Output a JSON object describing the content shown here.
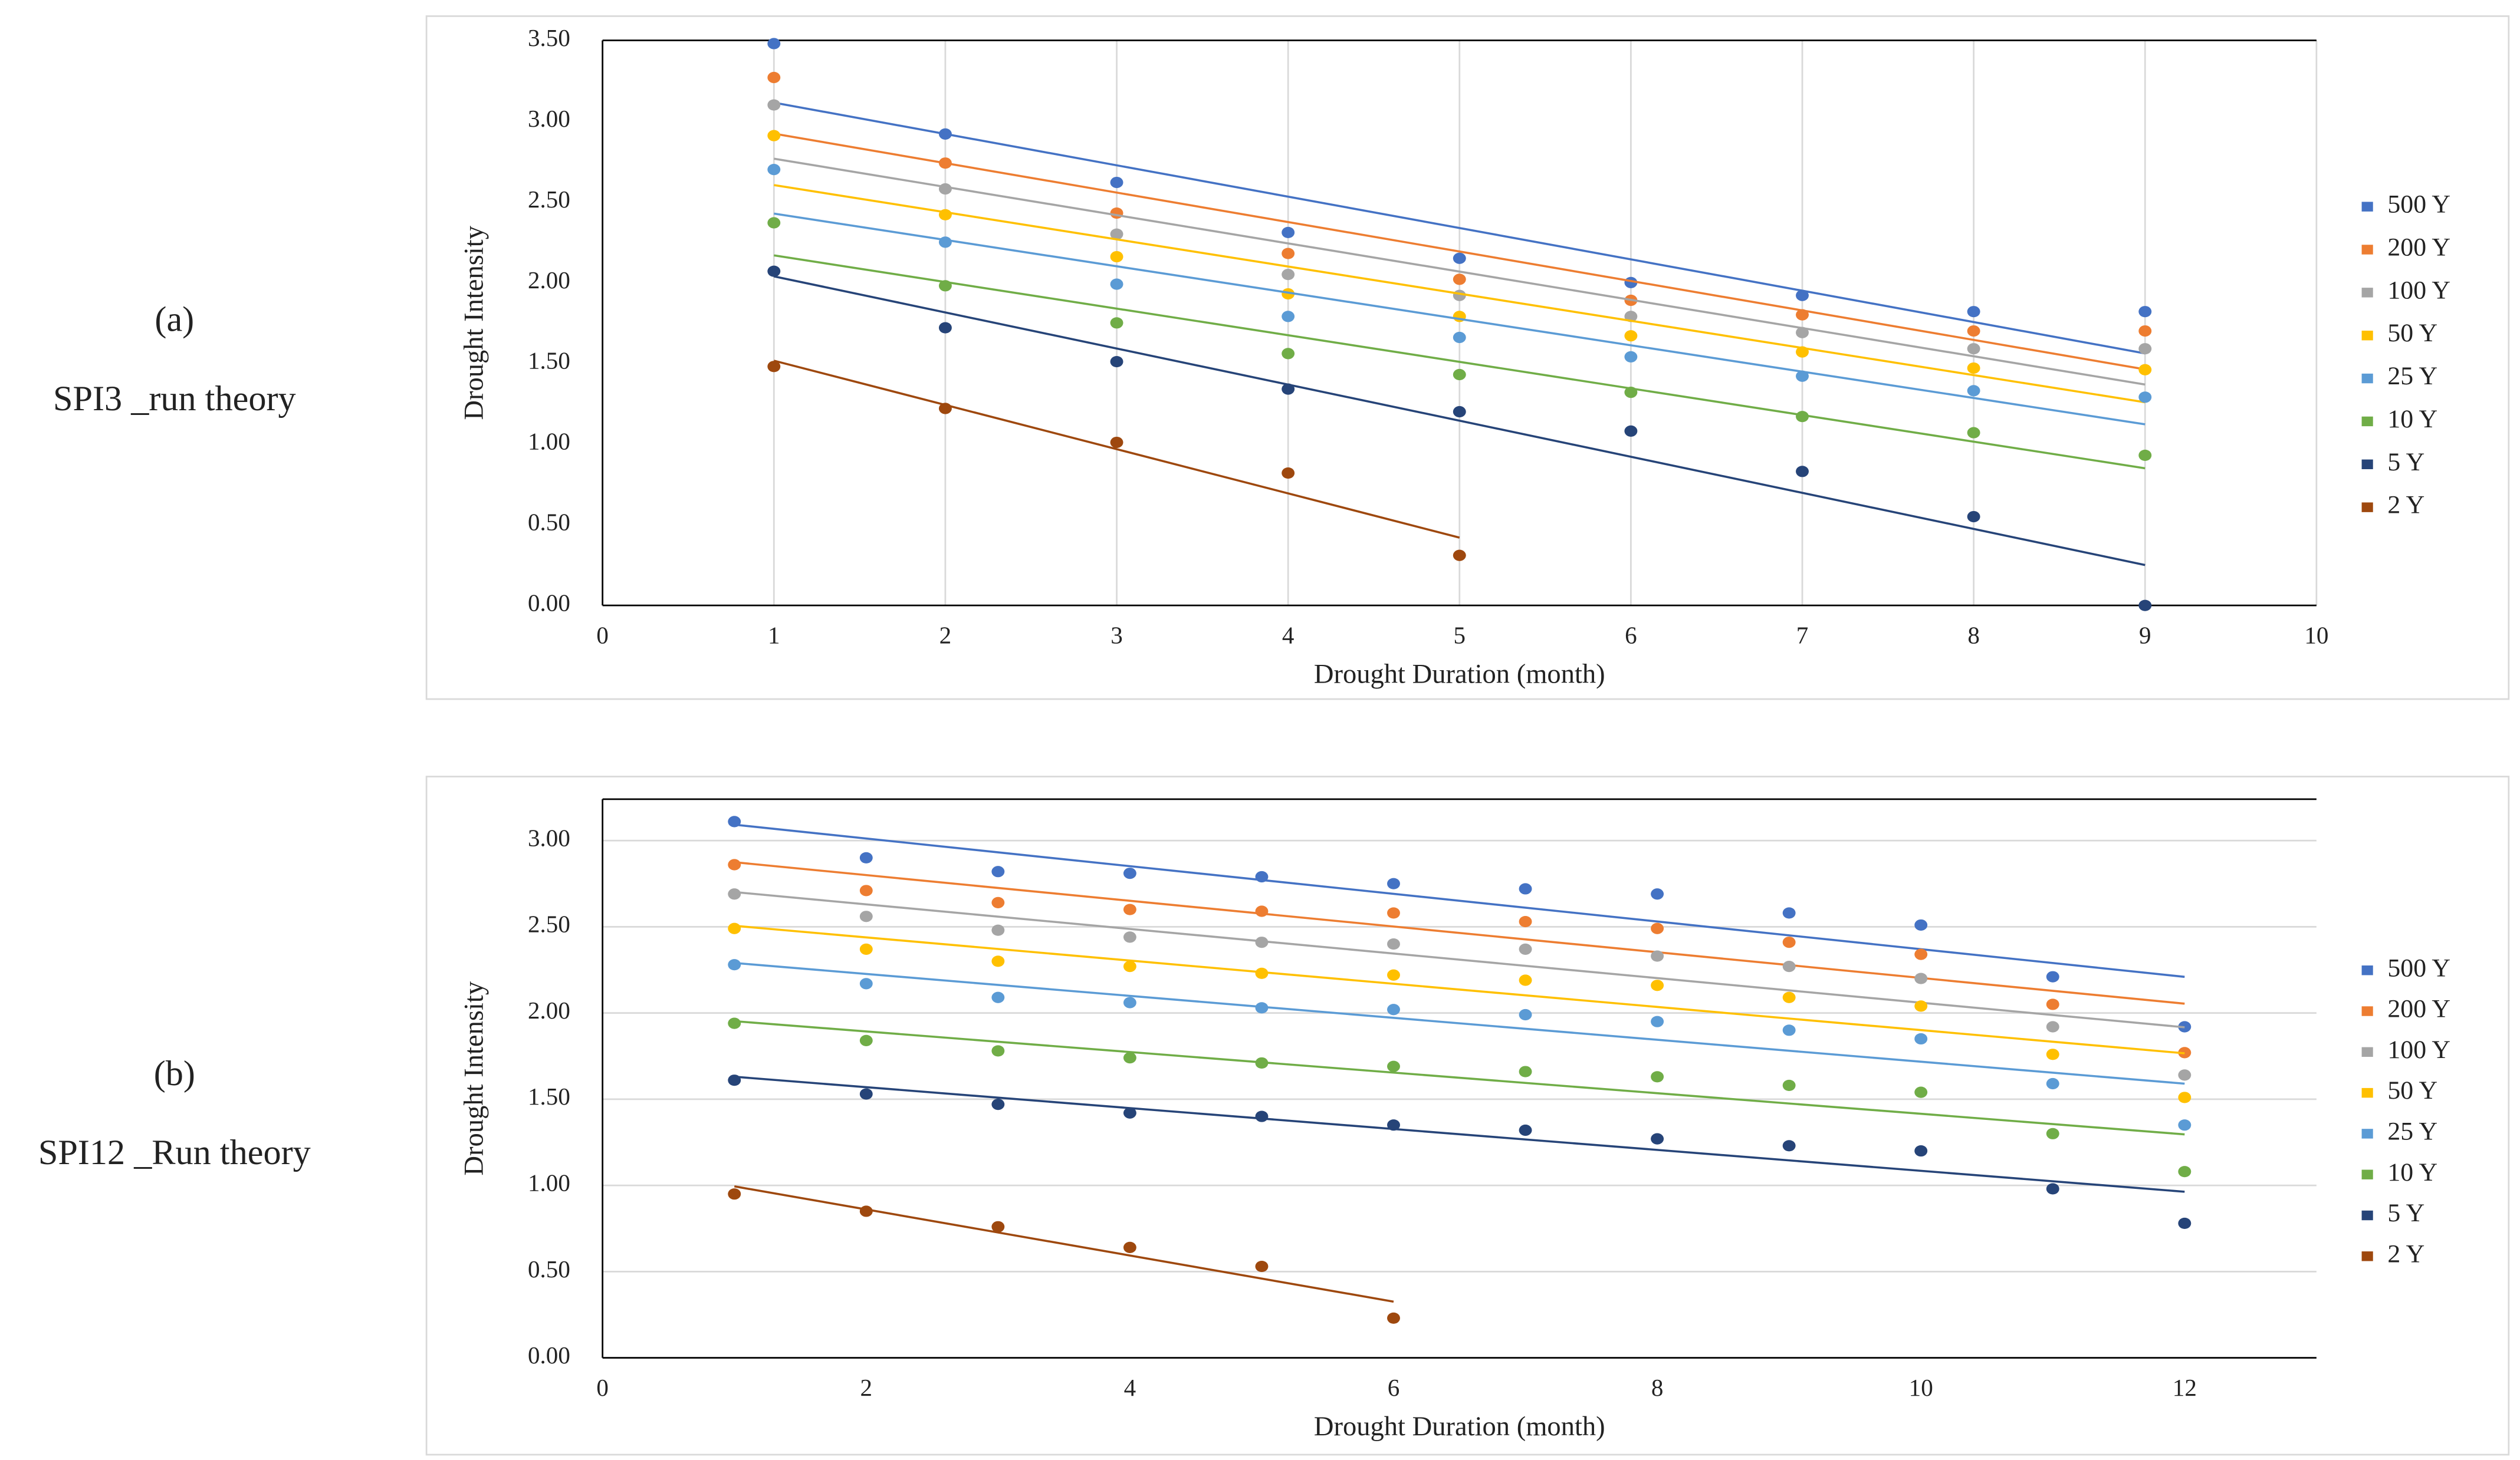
{
  "chart_data": [
    {
      "type": "scatter",
      "panel": "(a)",
      "caption": "SPI3 _run theory",
      "x_label": "Drought Duration (month)",
      "y_label": "Drought Intensity",
      "x": [
        1,
        2,
        3,
        4,
        5,
        6,
        7,
        8,
        9
      ],
      "xlim": [
        0,
        10
      ],
      "xticks": [
        0,
        1,
        2,
        3,
        4,
        5,
        6,
        7,
        8,
        9,
        10
      ],
      "ylim": [
        0,
        3.5
      ],
      "yticks": [
        {
          "value": 0,
          "label": "0.00"
        },
        {
          "value": 0.5,
          "label": "0.50"
        },
        {
          "value": 1,
          "label": "1.00"
        },
        {
          "value": 1.5,
          "label": "1.50"
        },
        {
          "value": 2,
          "label": "2.00"
        },
        {
          "value": 2.5,
          "label": "2.50"
        },
        {
          "value": 3,
          "label": "3.00"
        },
        {
          "value": 3.5,
          "label": "3.50"
        }
      ],
      "grid": "x",
      "trendline": true,
      "legend": "right",
      "series": [
        {
          "name": "500 Y",
          "color": "#4472c4",
          "values": [
            3.48,
            2.92,
            2.62,
            2.31,
            2.15,
            2.0,
            1.92,
            1.82,
            1.82
          ]
        },
        {
          "name": "200 Y",
          "color": "#ed7d31",
          "values": [
            3.27,
            2.74,
            2.43,
            2.18,
            2.02,
            1.89,
            1.8,
            1.7,
            1.7
          ]
        },
        {
          "name": "100 Y",
          "color": "#a5a5a5",
          "values": [
            3.1,
            2.58,
            2.3,
            2.05,
            1.92,
            1.79,
            1.69,
            1.59,
            1.59
          ]
        },
        {
          "name": "50 Y",
          "color": "#ffc000",
          "values": [
            2.91,
            2.42,
            2.16,
            1.93,
            1.79,
            1.67,
            1.57,
            1.47,
            1.46
          ]
        },
        {
          "name": "25 Y",
          "color": "#5b9bd5",
          "values": [
            2.7,
            2.25,
            1.99,
            1.79,
            1.66,
            1.54,
            1.42,
            1.33,
            1.29
          ]
        },
        {
          "name": "10 Y",
          "color": "#70ad47",
          "values": [
            2.37,
            1.98,
            1.75,
            1.56,
            1.43,
            1.32,
            1.17,
            1.07,
            0.93
          ]
        },
        {
          "name": "5 Y",
          "color": "#264478",
          "values": [
            2.07,
            1.72,
            1.51,
            1.34,
            1.2,
            1.08,
            0.83,
            0.55,
            0.0
          ]
        },
        {
          "name": "2 Y",
          "color": "#9e480e",
          "values": [
            1.48,
            1.22,
            1.01,
            0.82,
            0.31,
            null,
            null,
            null,
            null
          ]
        }
      ]
    },
    {
      "type": "scatter",
      "panel": "(b)",
      "caption": "SPI12 _Run theory",
      "x_label": "Drought Duration (month)",
      "y_label": "Drought Intensity",
      "x": [
        1,
        2,
        3,
        4,
        5,
        6,
        7,
        8,
        9,
        10,
        11,
        12
      ],
      "xlim": [
        0,
        13
      ],
      "xticks": [
        0,
        2,
        4,
        6,
        8,
        10,
        12
      ],
      "ylim": [
        0,
        3.24
      ],
      "yticks": [
        {
          "value": 0,
          "label": "0.00"
        },
        {
          "value": 0.5,
          "label": "0.50"
        },
        {
          "value": 1,
          "label": "1.00"
        },
        {
          "value": 1.5,
          "label": "1.50"
        },
        {
          "value": 2,
          "label": "2.00"
        },
        {
          "value": 2.5,
          "label": "2.50"
        },
        {
          "value": 3,
          "label": "3.00"
        }
      ],
      "grid": "y",
      "trendline": true,
      "legend": "right",
      "series": [
        {
          "name": "500 Y",
          "color": "#4472c4",
          "values": [
            3.11,
            2.9,
            2.82,
            2.81,
            2.79,
            2.75,
            2.72,
            2.69,
            2.58,
            2.51,
            2.21,
            1.92
          ]
        },
        {
          "name": "200 Y",
          "color": "#ed7d31",
          "values": [
            2.86,
            2.71,
            2.64,
            2.6,
            2.59,
            2.58,
            2.53,
            2.49,
            2.41,
            2.34,
            2.05,
            1.77
          ]
        },
        {
          "name": "100 Y",
          "color": "#a5a5a5",
          "values": [
            2.69,
            2.56,
            2.48,
            2.44,
            2.41,
            2.4,
            2.37,
            2.33,
            2.27,
            2.2,
            1.92,
            1.64
          ]
        },
        {
          "name": "50 Y",
          "color": "#ffc000",
          "values": [
            2.49,
            2.37,
            2.3,
            2.27,
            2.23,
            2.22,
            2.19,
            2.16,
            2.09,
            2.04,
            1.76,
            1.51
          ]
        },
        {
          "name": "25 Y",
          "color": "#5b9bd5",
          "values": [
            2.28,
            2.17,
            2.09,
            2.06,
            2.03,
            2.02,
            1.99,
            1.95,
            1.9,
            1.85,
            1.59,
            1.35
          ]
        },
        {
          "name": "10 Y",
          "color": "#70ad47",
          "values": [
            1.94,
            1.84,
            1.78,
            1.74,
            1.71,
            1.69,
            1.66,
            1.63,
            1.58,
            1.54,
            1.3,
            1.08
          ]
        },
        {
          "name": "5 Y",
          "color": "#264478",
          "values": [
            1.61,
            1.53,
            1.47,
            1.42,
            1.4,
            1.35,
            1.32,
            1.27,
            1.23,
            1.2,
            0.98,
            0.78
          ]
        },
        {
          "name": "2 Y",
          "color": "#9e480e",
          "values": [
            0.95,
            0.85,
            0.76,
            0.64,
            0.53,
            0.23,
            null,
            null,
            null,
            null,
            null,
            null
          ]
        }
      ]
    }
  ]
}
